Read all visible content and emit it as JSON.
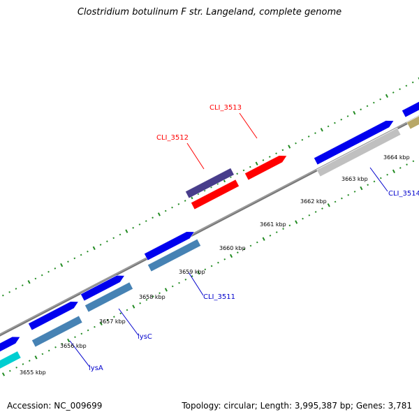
{
  "title": "Clostridium botulinum F str. Langeland, complete genome",
  "accession": "Accession: NC_009699",
  "summary": "Topology: circular; Length: 3,995,387 bp; Genes: 3,781",
  "tick_labels": [
    "3655 kbp",
    "3656 kbp",
    "3657 kbp",
    "3658 kbp",
    "3659 kbp",
    "3660 kbp",
    "3661 kbp",
    "3662 kbp",
    "3663 kbp",
    "3664 kbp"
  ],
  "gene_labels": [
    {
      "text": "CLI_3513",
      "color": "#ff0000"
    },
    {
      "text": "CLI_3512",
      "color": "#ff0000"
    },
    {
      "text": "CLI_3514",
      "color": "#0000cc"
    },
    {
      "text": "CLI_3511",
      "color": "#0000cc"
    },
    {
      "text": "lysC",
      "color": "#0000cc"
    },
    {
      "text": "lysA",
      "color": "#0000cc"
    }
  ],
  "colors": {
    "backbone": "#888888",
    "ticks": "#228b22",
    "cds_blue": "#0000ee",
    "cds_steel": "#4682b4",
    "cds_red": "#ff0000",
    "cds_purple": "#483d8b",
    "cds_gray": "#c0c0c0",
    "cds_cyan": "#00ced1",
    "cds_khaki": "#b8a868"
  }
}
